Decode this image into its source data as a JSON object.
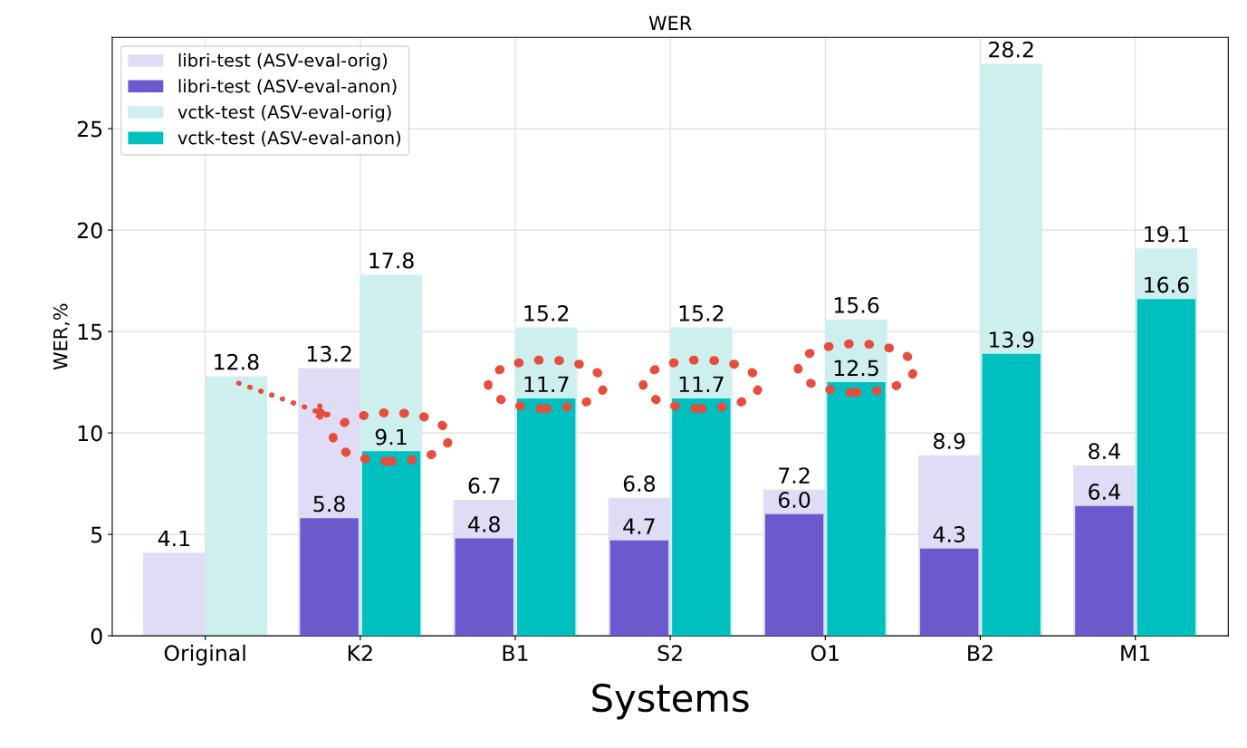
{
  "chart_data": {
    "type": "bar",
    "title": "WER",
    "xlabel": "Systems",
    "ylabel": "WER,%",
    "categories": [
      "Original",
      "K2",
      "B1",
      "S2",
      "O1",
      "B2",
      "M1"
    ],
    "series": [
      {
        "name": "libri-test (ASV-eval-orig)",
        "color": "#e0dcf5",
        "values": [
          4.1,
          13.2,
          6.7,
          6.8,
          7.2,
          8.9,
          8.4
        ],
        "value_labels": [
          "4.1",
          "13.2",
          "6.7",
          "6.8",
          "7.2",
          "8.9",
          "8.4"
        ]
      },
      {
        "name": "libri-test (ASV-eval-anon)",
        "color": "#6a5acd",
        "values": [
          null,
          5.8,
          4.8,
          4.7,
          6.0,
          4.3,
          6.4
        ],
        "value_labels": [
          null,
          "5.8",
          "4.8",
          "4.7",
          "6.0",
          "4.3",
          "6.4"
        ]
      },
      {
        "name": "vctk-test (ASV-eval-orig)",
        "color": "#cdf0ee",
        "values": [
          12.8,
          17.8,
          15.2,
          15.2,
          15.6,
          28.2,
          19.1
        ],
        "value_labels": [
          "12.8",
          "17.8",
          "15.2",
          "15.2",
          "15.6",
          "28.2",
          "19.1"
        ]
      },
      {
        "name": "vctk-test (ASV-eval-anon)",
        "color": "#00bfbf",
        "values": [
          null,
          9.1,
          11.7,
          11.7,
          12.5,
          13.9,
          16.6
        ],
        "value_labels": [
          null,
          "9.1",
          "11.7",
          "11.7",
          "12.5",
          "13.9",
          "16.6"
        ]
      }
    ],
    "ylim": [
      0,
      29.5
    ],
    "yticks": [
      0,
      5,
      10,
      15,
      20,
      25
    ],
    "grid": true,
    "legend": "top left"
  }
}
